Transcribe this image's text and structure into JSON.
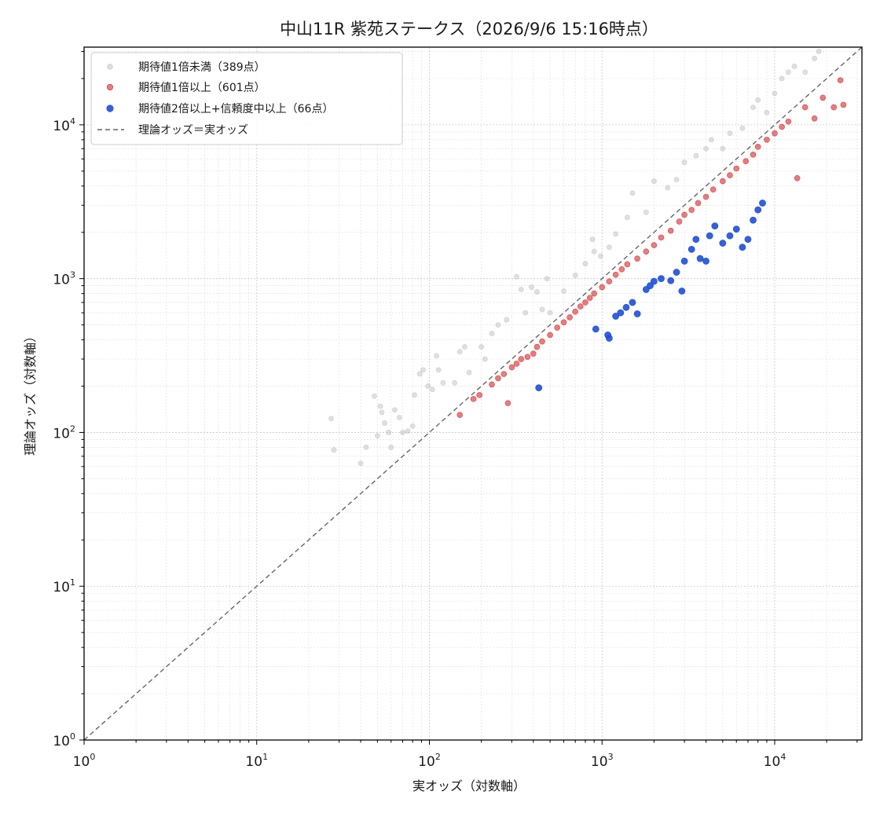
{
  "chart_data": {
    "type": "scatter",
    "title": "中山11R 紫苑ステークス（2026/9/6 15:16時点）",
    "xlabel": "実オッズ（対数軸）",
    "ylabel": "理論オッズ（対数軸）",
    "x_scale": "log",
    "y_scale": "log",
    "xlim": [
      1,
      32000
    ],
    "ylim": [
      1,
      32000
    ],
    "x_ticks": [
      {
        "base": "10",
        "exp": "0",
        "value": 1
      },
      {
        "base": "10",
        "exp": "1",
        "value": 10
      },
      {
        "base": "10",
        "exp": "2",
        "value": 100
      },
      {
        "base": "10",
        "exp": "3",
        "value": 1000
      },
      {
        "base": "10",
        "exp": "4",
        "value": 10000
      }
    ],
    "y_ticks": [
      {
        "base": "10",
        "exp": "0",
        "value": 1
      },
      {
        "base": "10",
        "exp": "1",
        "value": 10
      },
      {
        "base": "10",
        "exp": "2",
        "value": 100
      },
      {
        "base": "10",
        "exp": "3",
        "value": 1000
      },
      {
        "base": "10",
        "exp": "4",
        "value": 10000
      }
    ],
    "grid": true,
    "legend_position": "top-left",
    "reference_line": {
      "name": "理論オッズ＝実オッズ",
      "color": "#666666",
      "style": "dashed"
    },
    "series": [
      {
        "name": "期待値1倍未満（389点）",
        "color": "#bbbbbb",
        "count": 389,
        "sample_points": [
          [
            27,
            123
          ],
          [
            28,
            77
          ],
          [
            40,
            63
          ],
          [
            43,
            80
          ],
          [
            48,
            172
          ],
          [
            50,
            95
          ],
          [
            52,
            148
          ],
          [
            53,
            135
          ],
          [
            55,
            115
          ],
          [
            58,
            100
          ],
          [
            60,
            80
          ],
          [
            63,
            140
          ],
          [
            67,
            125
          ],
          [
            70,
            100
          ],
          [
            75,
            102
          ],
          [
            80,
            110
          ],
          [
            82,
            175
          ],
          [
            88,
            240
          ],
          [
            92,
            255
          ],
          [
            98,
            200
          ],
          [
            104,
            190
          ],
          [
            110,
            315
          ],
          [
            113,
            255
          ],
          [
            120,
            210
          ],
          [
            140,
            210
          ],
          [
            150,
            335
          ],
          [
            160,
            360
          ],
          [
            170,
            245
          ],
          [
            200,
            360
          ],
          [
            210,
            300
          ],
          [
            230,
            440
          ],
          [
            250,
            500
          ],
          [
            280,
            540
          ],
          [
            320,
            1030
          ],
          [
            340,
            850
          ],
          [
            360,
            600
          ],
          [
            390,
            880
          ],
          [
            420,
            820
          ],
          [
            450,
            630
          ],
          [
            480,
            1000
          ],
          [
            500,
            600
          ],
          [
            600,
            830
          ],
          [
            700,
            1050
          ],
          [
            800,
            1250
          ],
          [
            880,
            1800
          ],
          [
            900,
            1500
          ],
          [
            980,
            1400
          ],
          [
            1100,
            1600
          ],
          [
            1200,
            1950
          ],
          [
            1400,
            2500
          ],
          [
            1500,
            3600
          ],
          [
            1800,
            2700
          ],
          [
            2000,
            4300
          ],
          [
            2400,
            3900
          ],
          [
            2700,
            4400
          ],
          [
            3000,
            5700
          ],
          [
            3500,
            6300
          ],
          [
            4000,
            7000
          ],
          [
            4300,
            8000
          ],
          [
            5000,
            7000
          ],
          [
            5500,
            8800
          ],
          [
            6500,
            9500
          ],
          [
            7500,
            13000
          ],
          [
            8000,
            14500
          ],
          [
            9000,
            12000
          ],
          [
            10000,
            16000
          ],
          [
            11000,
            20000
          ],
          [
            12000,
            22000
          ],
          [
            13000,
            24000
          ],
          [
            15000,
            22000
          ],
          [
            17000,
            27000
          ],
          [
            18000,
            30000
          ]
        ]
      },
      {
        "name": "期待値1倍以上（601点）",
        "color": "#d62728",
        "count": 601,
        "sample_points": [
          [
            150,
            130
          ],
          [
            180,
            165
          ],
          [
            195,
            175
          ],
          [
            230,
            205
          ],
          [
            250,
            225
          ],
          [
            270,
            240
          ],
          [
            285,
            155
          ],
          [
            300,
            265
          ],
          [
            320,
            280
          ],
          [
            340,
            300
          ],
          [
            370,
            310
          ],
          [
            400,
            325
          ],
          [
            420,
            360
          ],
          [
            450,
            390
          ],
          [
            500,
            430
          ],
          [
            550,
            480
          ],
          [
            600,
            520
          ],
          [
            650,
            560
          ],
          [
            700,
            610
          ],
          [
            750,
            660
          ],
          [
            800,
            700
          ],
          [
            850,
            750
          ],
          [
            900,
            800
          ],
          [
            1000,
            880
          ],
          [
            1100,
            960
          ],
          [
            1200,
            1060
          ],
          [
            1300,
            1150
          ],
          [
            1400,
            1240
          ],
          [
            1600,
            1350
          ],
          [
            1800,
            1500
          ],
          [
            2000,
            1650
          ],
          [
            2200,
            1850
          ],
          [
            2500,
            2050
          ],
          [
            2800,
            2350
          ],
          [
            3000,
            2600
          ],
          [
            3300,
            2800
          ],
          [
            3600,
            3100
          ],
          [
            4000,
            3400
          ],
          [
            4400,
            3800
          ],
          [
            5000,
            4300
          ],
          [
            5500,
            4700
          ],
          [
            6000,
            5200
          ],
          [
            6800,
            5800
          ],
          [
            7500,
            6400
          ],
          [
            8000,
            7200
          ],
          [
            9000,
            8000
          ],
          [
            10000,
            8800
          ],
          [
            11000,
            9700
          ],
          [
            12000,
            10500
          ],
          [
            13500,
            4500
          ],
          [
            15000,
            13000
          ],
          [
            17000,
            11000
          ],
          [
            19000,
            15000
          ],
          [
            22000,
            13000
          ],
          [
            25000,
            13500
          ],
          [
            24000,
            19500
          ]
        ]
      },
      {
        "name": "期待値2倍以上+信頼度中以上（66点）",
        "color": "#1f4fd8",
        "count": 66,
        "sample_points": [
          [
            430,
            195
          ],
          [
            920,
            470
          ],
          [
            1080,
            430
          ],
          [
            1100,
            410
          ],
          [
            1200,
            570
          ],
          [
            1280,
            600
          ],
          [
            1380,
            650
          ],
          [
            1500,
            700
          ],
          [
            1600,
            590
          ],
          [
            1800,
            850
          ],
          [
            1900,
            900
          ],
          [
            2000,
            960
          ],
          [
            2200,
            1000
          ],
          [
            2500,
            970
          ],
          [
            2700,
            1100
          ],
          [
            2900,
            830
          ],
          [
            3000,
            1300
          ],
          [
            3300,
            1550
          ],
          [
            3500,
            1800
          ],
          [
            3700,
            1350
          ],
          [
            4000,
            1300
          ],
          [
            4200,
            1900
          ],
          [
            4500,
            2200
          ],
          [
            5000,
            1700
          ],
          [
            5500,
            1900
          ],
          [
            6000,
            2100
          ],
          [
            6500,
            1600
          ],
          [
            7000,
            1800
          ],
          [
            7500,
            2400
          ],
          [
            8000,
            2800
          ],
          [
            8500,
            3100
          ]
        ]
      }
    ]
  }
}
